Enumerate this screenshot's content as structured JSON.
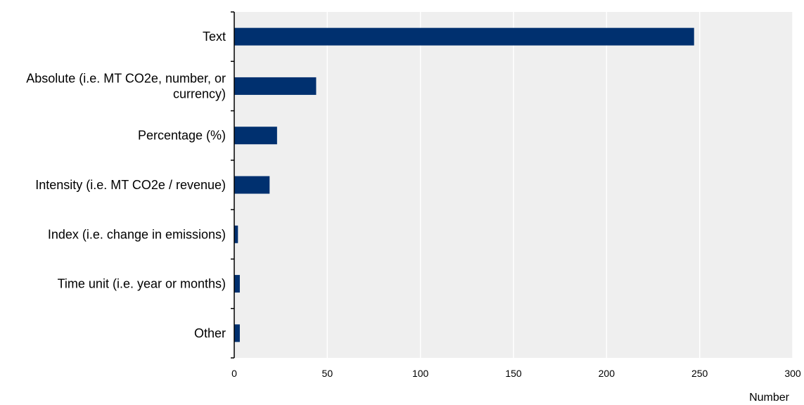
{
  "chart_data": {
    "type": "bar",
    "orientation": "horizontal",
    "categories": [
      [
        "Text"
      ],
      [
        "Absolute (i.e. MT CO2e, number, or",
        "currency)"
      ],
      [
        "Percentage (%)"
      ],
      [
        "Intensity (i.e. MT CO2e / revenue)"
      ],
      [
        "Index (i.e. change in emissions)"
      ],
      [
        "Time unit (i.e. year or months)"
      ],
      [
        "Other"
      ]
    ],
    "values": [
      247,
      44,
      23,
      19,
      2,
      3,
      3
    ],
    "xlim": [
      0,
      300
    ],
    "xticks": [
      0,
      50,
      100,
      150,
      200,
      250,
      300
    ],
    "xlabel": "Number",
    "ylabel": "",
    "title": "",
    "grid": true,
    "colors": {
      "bar": "#00306f",
      "plot_background": "#efefef",
      "gridline": "#ffffff",
      "axis": "#000000"
    }
  }
}
